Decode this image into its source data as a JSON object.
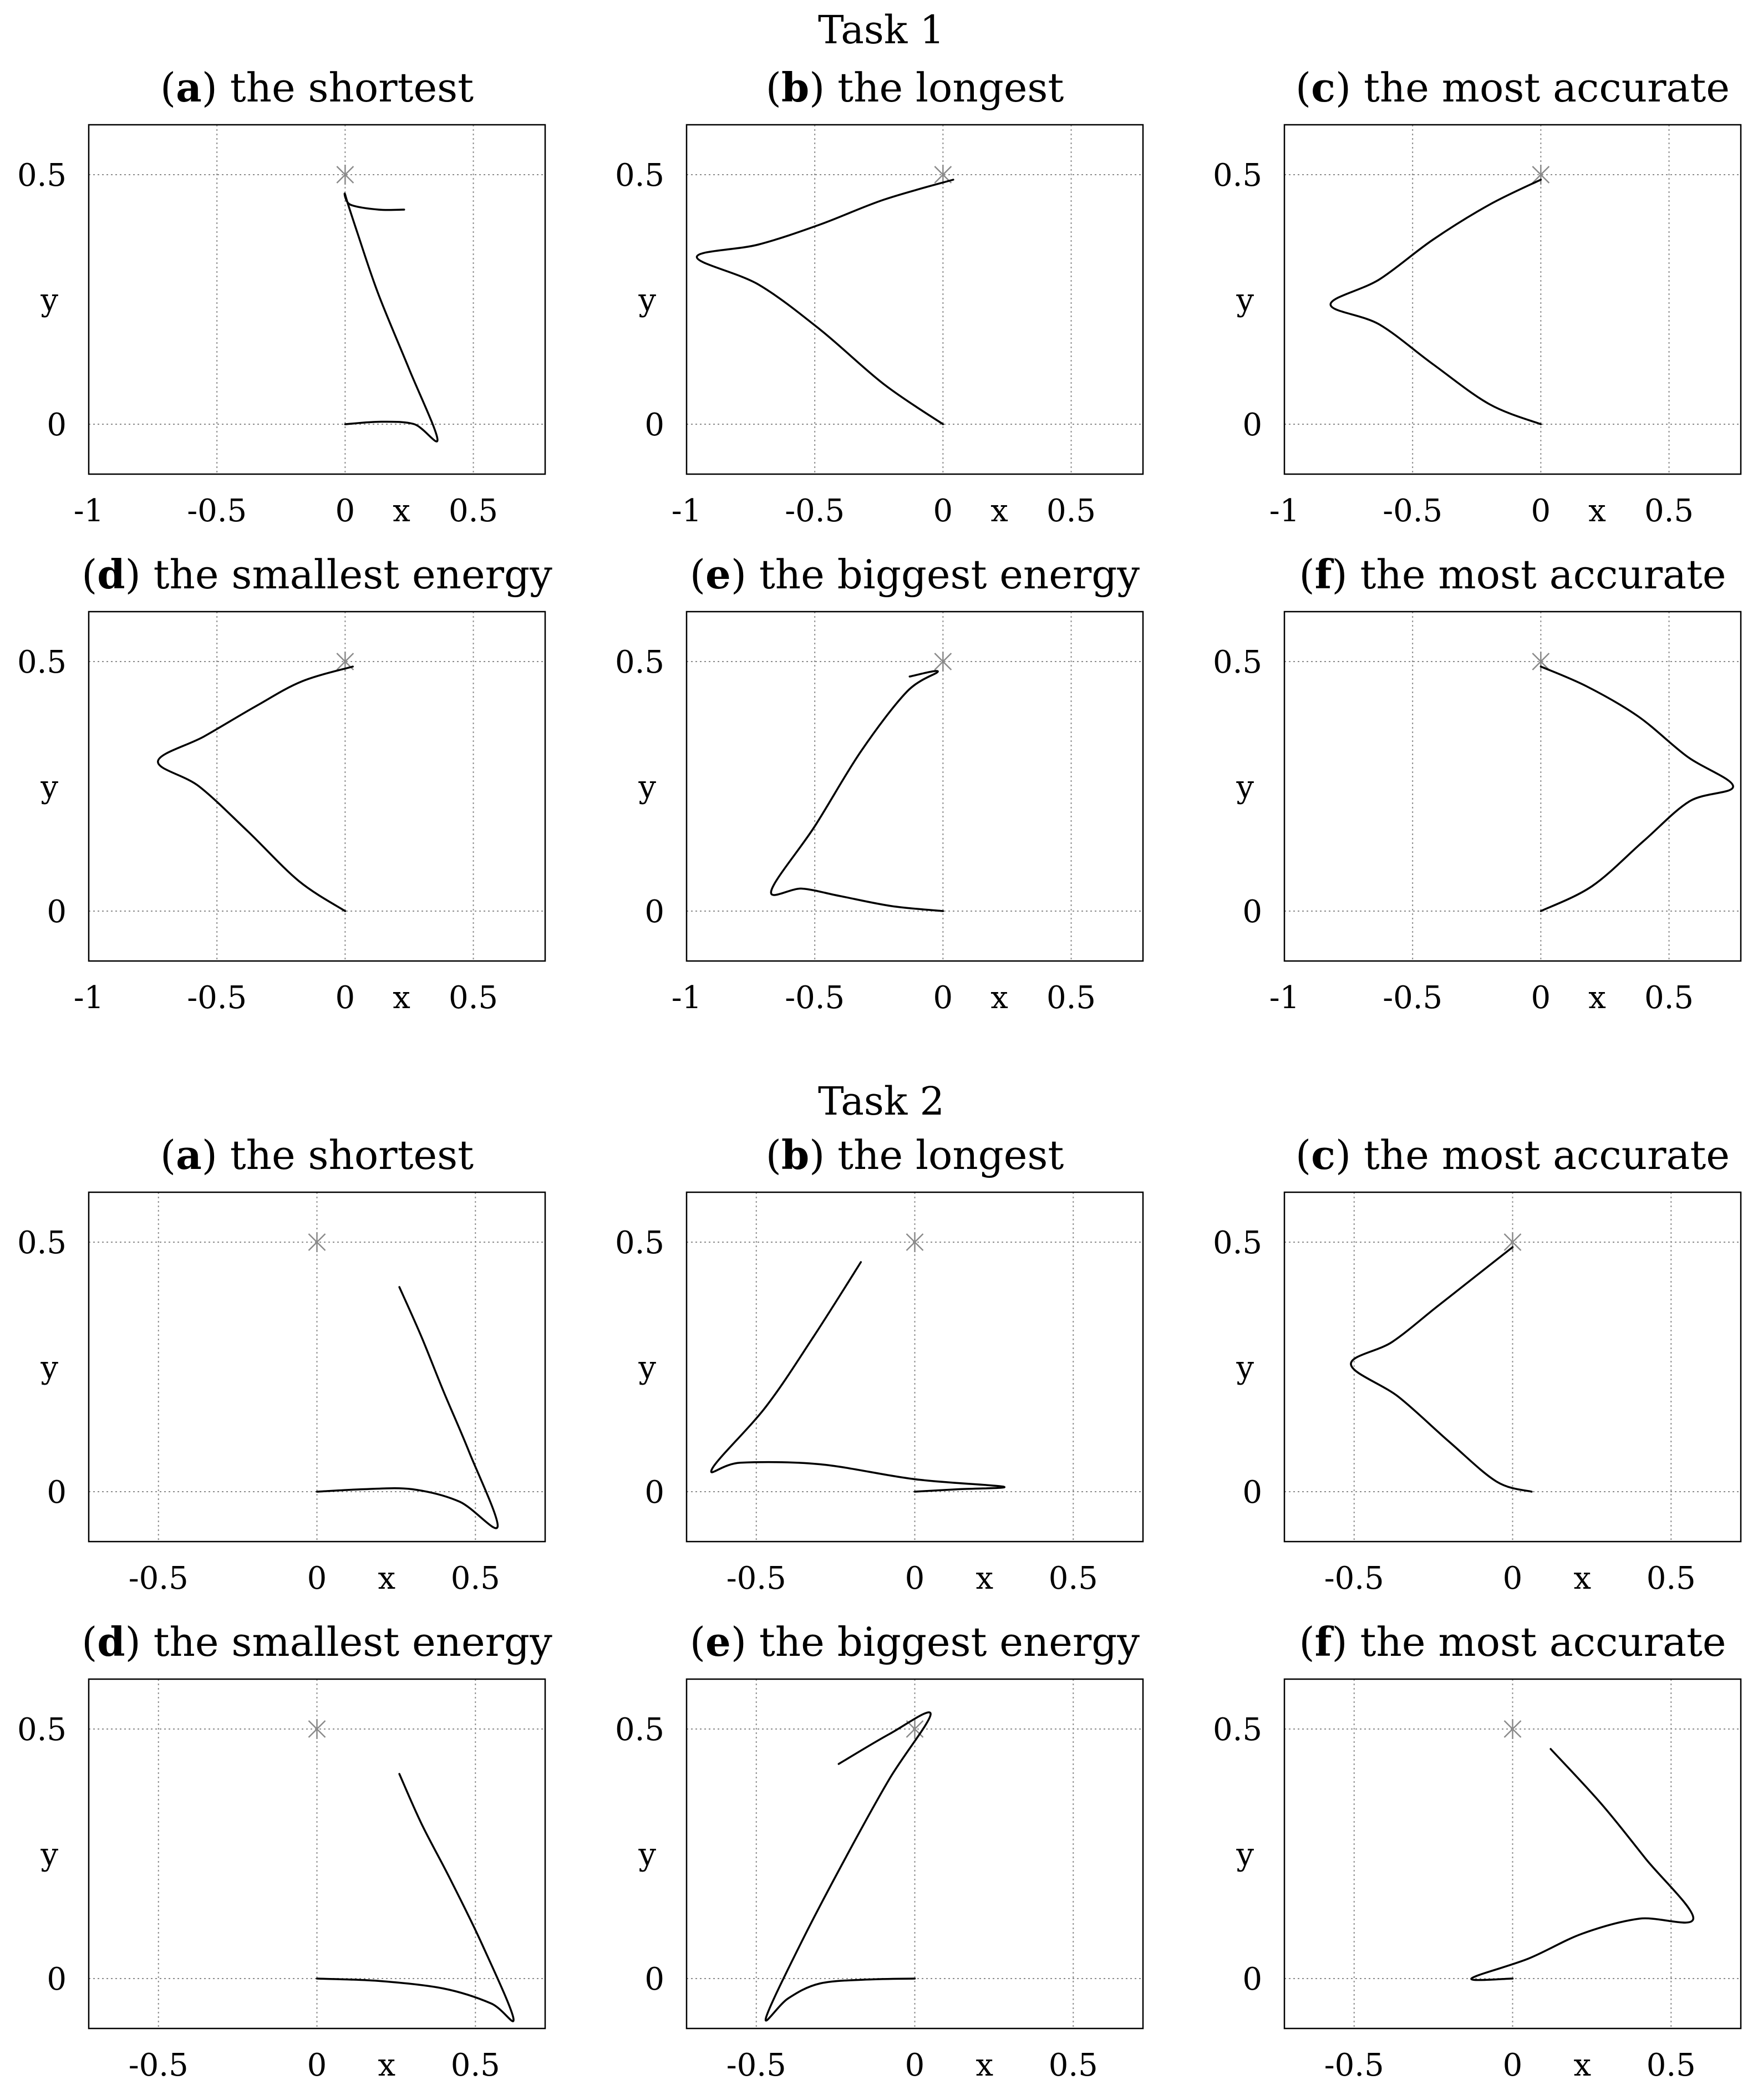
{
  "chart_data": [
    {
      "type": "line",
      "task": "Task 1",
      "panel_letter": "a",
      "title": "the shortest",
      "xlabel": "x",
      "ylabel": "y",
      "xlim": [
        -1.0,
        0.78
      ],
      "ylim": [
        -0.1,
        0.6
      ],
      "xticks": [
        -1,
        -0.5,
        0,
        0.5
      ],
      "xtick_labels": [
        "-1",
        "-0.5",
        "0",
        "0.5"
      ],
      "yticks": [
        0,
        0.5
      ],
      "ytick_labels": [
        "0",
        "0.5"
      ],
      "grid": true,
      "target": {
        "x": 0,
        "y": 0.5
      },
      "series": [
        {
          "name": "trajectory",
          "x": [
            0.23,
            0.13,
            0.02,
            0.0,
            0.05,
            0.13,
            0.25,
            0.36,
            0.27,
            0.14,
            0.0
          ],
          "y": [
            0.43,
            0.43,
            0.44,
            0.46,
            0.38,
            0.26,
            0.11,
            -0.03,
            0.0,
            0.005,
            0.0
          ]
        }
      ]
    },
    {
      "type": "line",
      "task": "Task 1",
      "panel_letter": "b",
      "title": "the longest",
      "xlabel": "x",
      "ylabel": "y",
      "xlim": [
        -1.0,
        0.78
      ],
      "ylim": [
        -0.1,
        0.6
      ],
      "xticks": [
        -1,
        -0.5,
        0,
        0.5
      ],
      "xtick_labels": [
        "-1",
        "-0.5",
        "0",
        "0.5"
      ],
      "yticks": [
        0,
        0.5
      ],
      "ytick_labels": [
        "0",
        "0.5"
      ],
      "grid": true,
      "target": {
        "x": 0,
        "y": 0.5
      },
      "series": [
        {
          "name": "trajectory",
          "x": [
            0.0,
            -0.23,
            -0.48,
            -0.72,
            -0.96,
            -0.72,
            -0.48,
            -0.23,
            0.04
          ],
          "y": [
            0.0,
            0.08,
            0.19,
            0.28,
            0.335,
            0.36,
            0.4,
            0.45,
            0.49
          ]
        }
      ]
    },
    {
      "type": "line",
      "task": "Task 1",
      "panel_letter": "c",
      "title": "the most accurate",
      "xlabel": "x",
      "ylabel": "y",
      "xlim": [
        -1.0,
        0.78
      ],
      "ylim": [
        -0.1,
        0.6
      ],
      "xticks": [
        -1,
        -0.5,
        0,
        0.5
      ],
      "xtick_labels": [
        "-1",
        "-0.5",
        "0",
        "0.5"
      ],
      "yticks": [
        0,
        0.5
      ],
      "ytick_labels": [
        "0",
        "0.5"
      ],
      "grid": true,
      "target": {
        "x": 0,
        "y": 0.5
      },
      "series": [
        {
          "name": "trajectory",
          "x": [
            0.0,
            -0.2,
            -0.42,
            -0.63,
            -0.82,
            -0.63,
            -0.42,
            -0.2,
            0.0
          ],
          "y": [
            0.0,
            0.04,
            0.12,
            0.2,
            0.24,
            0.29,
            0.37,
            0.44,
            0.49
          ]
        }
      ]
    },
    {
      "type": "line",
      "task": "Task 1",
      "panel_letter": "d",
      "title": "the smallest energy",
      "xlabel": "x",
      "ylabel": "y",
      "xlim": [
        -1.0,
        0.78
      ],
      "ylim": [
        -0.1,
        0.6
      ],
      "xticks": [
        -1,
        -0.5,
        0,
        0.5
      ],
      "xtick_labels": [
        "-1",
        "-0.5",
        "0",
        "0.5"
      ],
      "yticks": [
        0,
        0.5
      ],
      "ytick_labels": [
        "0",
        "0.5"
      ],
      "grid": true,
      "target": {
        "x": 0,
        "y": 0.5
      },
      "series": [
        {
          "name": "trajectory",
          "x": [
            0.0,
            -0.18,
            -0.38,
            -0.57,
            -0.73,
            -0.55,
            -0.35,
            -0.17,
            0.03
          ],
          "y": [
            0.0,
            0.06,
            0.16,
            0.25,
            0.3,
            0.35,
            0.41,
            0.46,
            0.49
          ]
        }
      ]
    },
    {
      "type": "line",
      "task": "Task 1",
      "panel_letter": "e",
      "title": "the biggest energy",
      "xlabel": "x",
      "ylabel": "y",
      "xlim": [
        -1.0,
        0.78
      ],
      "ylim": [
        -0.1,
        0.6
      ],
      "xticks": [
        -1,
        -0.5,
        0,
        0.5
      ],
      "xtick_labels": [
        "-1",
        "-0.5",
        "0",
        "0.5"
      ],
      "yticks": [
        0,
        0.5
      ],
      "ytick_labels": [
        "0",
        "0.5"
      ],
      "grid": true,
      "target": {
        "x": 0,
        "y": 0.5
      },
      "series": [
        {
          "name": "trajectory",
          "x": [
            0.0,
            -0.2,
            -0.4,
            -0.55,
            -0.67,
            -0.5,
            -0.32,
            -0.14,
            -0.02,
            -0.13
          ],
          "y": [
            0.0,
            0.01,
            0.03,
            0.045,
            0.04,
            0.17,
            0.32,
            0.44,
            0.48,
            0.47
          ]
        }
      ]
    },
    {
      "type": "line",
      "task": "Task 1",
      "panel_letter": "f",
      "title": "the most accurate",
      "xlabel": "x",
      "ylabel": "y",
      "xlim": [
        -1.0,
        0.78
      ],
      "ylim": [
        -0.1,
        0.6
      ],
      "xticks": [
        -1,
        -0.5,
        0,
        0.5
      ],
      "xtick_labels": [
        "-1",
        "-0.5",
        "0",
        "0.5"
      ],
      "yticks": [
        0,
        0.5
      ],
      "ytick_labels": [
        "0",
        "0.5"
      ],
      "grid": true,
      "target": {
        "x": 0,
        "y": 0.5
      },
      "series": [
        {
          "name": "trajectory",
          "x": [
            0.0,
            0.2,
            0.4,
            0.58,
            0.75,
            0.57,
            0.38,
            0.18,
            0.0
          ],
          "y": [
            0.0,
            0.05,
            0.14,
            0.22,
            0.25,
            0.31,
            0.39,
            0.45,
            0.49
          ]
        }
      ]
    },
    {
      "type": "line",
      "task": "Task 2",
      "panel_letter": "a",
      "title": "the shortest",
      "xlabel": "x",
      "ylabel": "y",
      "xlim": [
        -0.72,
        0.72
      ],
      "ylim": [
        -0.1,
        0.6
      ],
      "xticks": [
        -0.5,
        0,
        0.5
      ],
      "xtick_labels": [
        "-0.5",
        "0",
        "0.5"
      ],
      "yticks": [
        0,
        0.5
      ],
      "ytick_labels": [
        "0",
        "0.5"
      ],
      "grid": true,
      "target": {
        "x": 0,
        "y": 0.5
      },
      "series": [
        {
          "name": "trajectory",
          "x": [
            0.0,
            0.15,
            0.3,
            0.45,
            0.57,
            0.48,
            0.4,
            0.33,
            0.26
          ],
          "y": [
            0.0,
            0.005,
            0.005,
            -0.02,
            -0.07,
            0.08,
            0.2,
            0.31,
            0.41
          ]
        }
      ]
    },
    {
      "type": "line",
      "task": "Task 2",
      "panel_letter": "b",
      "title": "the longest",
      "xlabel": "x",
      "ylabel": "y",
      "xlim": [
        -0.72,
        0.72
      ],
      "ylim": [
        -0.1,
        0.6
      ],
      "xticks": [
        -0.5,
        0,
        0.5
      ],
      "xtick_labels": [
        "-0.5",
        "0",
        "0.5"
      ],
      "yticks": [
        0,
        0.5
      ],
      "ytick_labels": [
        "0",
        "0.5"
      ],
      "grid": true,
      "target": {
        "x": 0,
        "y": 0.5
      },
      "series": [
        {
          "name": "trajectory",
          "x": [
            0.0,
            0.14,
            0.28,
            0.0,
            -0.3,
            -0.55,
            -0.64,
            -0.47,
            -0.32,
            -0.17
          ],
          "y": [
            0.0,
            0.005,
            0.01,
            0.025,
            0.055,
            0.058,
            0.045,
            0.17,
            0.31,
            0.46
          ]
        }
      ]
    },
    {
      "type": "line",
      "task": "Task 2",
      "panel_letter": "c",
      "title": "the most accurate",
      "xlabel": "x",
      "ylabel": "y",
      "xlim": [
        -0.72,
        0.72
      ],
      "ylim": [
        -0.1,
        0.6
      ],
      "xticks": [
        -0.5,
        0,
        0.5
      ],
      "xtick_labels": [
        "-0.5",
        "0",
        "0.5"
      ],
      "yticks": [
        0,
        0.5
      ],
      "ytick_labels": [
        "0",
        "0.5"
      ],
      "grid": true,
      "target": {
        "x": 0,
        "y": 0.5
      },
      "series": [
        {
          "name": "trajectory",
          "x": [
            0.06,
            -0.05,
            -0.2,
            -0.36,
            -0.51,
            -0.38,
            -0.24,
            -0.1,
            0.0
          ],
          "y": [
            0.0,
            0.02,
            0.1,
            0.19,
            0.255,
            0.3,
            0.37,
            0.44,
            0.49
          ]
        }
      ]
    },
    {
      "type": "line",
      "task": "Task 2",
      "panel_letter": "d",
      "title": "the smallest energy",
      "xlabel": "x",
      "ylabel": "y",
      "xlim": [
        -0.72,
        0.72
      ],
      "ylim": [
        -0.1,
        0.6
      ],
      "xticks": [
        -0.5,
        0,
        0.5
      ],
      "xtick_labels": [
        "-0.5",
        "0",
        "0.5"
      ],
      "yticks": [
        0,
        0.5
      ],
      "ytick_labels": [
        "0",
        "0.5"
      ],
      "grid": true,
      "target": {
        "x": 0,
        "y": 0.5
      },
      "series": [
        {
          "name": "trajectory",
          "x": [
            0.0,
            0.2,
            0.4,
            0.55,
            0.62,
            0.52,
            0.42,
            0.33,
            0.26
          ],
          "y": [
            0.0,
            -0.005,
            -0.02,
            -0.05,
            -0.08,
            0.07,
            0.2,
            0.31,
            0.41
          ]
        }
      ]
    },
    {
      "type": "line",
      "task": "Task 2",
      "panel_letter": "e",
      "title": "the biggest energy",
      "xlabel": "x",
      "ylabel": "y",
      "xlim": [
        -0.72,
        0.72
      ],
      "ylim": [
        -0.1,
        0.6
      ],
      "xticks": [
        -0.5,
        0,
        0.5
      ],
      "xtick_labels": [
        "-0.5",
        "0",
        "0.5"
      ],
      "yticks": [
        0,
        0.5
      ],
      "ytick_labels": [
        "0",
        "0.5"
      ],
      "grid": true,
      "target": {
        "x": 0,
        "y": 0.5
      },
      "series": [
        {
          "name": "trajectory",
          "x": [
            0.0,
            -0.15,
            -0.3,
            -0.4,
            -0.47,
            -0.36,
            -0.22,
            -0.08,
            0.05,
            -0.08,
            -0.24
          ],
          "y": [
            0.0,
            -0.002,
            -0.01,
            -0.04,
            -0.08,
            0.07,
            0.24,
            0.4,
            0.53,
            0.49,
            0.43
          ]
        }
      ]
    },
    {
      "type": "line",
      "task": "Task 2",
      "panel_letter": "f",
      "title": "the most accurate",
      "xlabel": "x",
      "ylabel": "y",
      "xlim": [
        -0.72,
        0.72
      ],
      "ylim": [
        -0.1,
        0.6
      ],
      "xticks": [
        -0.5,
        0,
        0.5
      ],
      "xtick_labels": [
        "-0.5",
        "0",
        "0.5"
      ],
      "yticks": [
        0,
        0.5
      ],
      "ytick_labels": [
        "0",
        "0.5"
      ],
      "grid": true,
      "target": {
        "x": 0,
        "y": 0.5
      },
      "series": [
        {
          "name": "trajectory",
          "x": [
            0.0,
            -0.13,
            0.05,
            0.22,
            0.4,
            0.57,
            0.42,
            0.28,
            0.12
          ],
          "y": [
            0.0,
            0.0,
            0.04,
            0.09,
            0.12,
            0.12,
            0.24,
            0.35,
            0.46
          ]
        }
      ]
    }
  ],
  "sections": [
    {
      "title": "Task 1"
    },
    {
      "title": "Task 2"
    }
  ],
  "colors": {
    "line": "#000000",
    "grid": "#8c8c8c",
    "frame": "#000000",
    "marker": "#8a8a8a",
    "background": "#ffffff"
  },
  "marker_icon": "asterisk-target-icon"
}
